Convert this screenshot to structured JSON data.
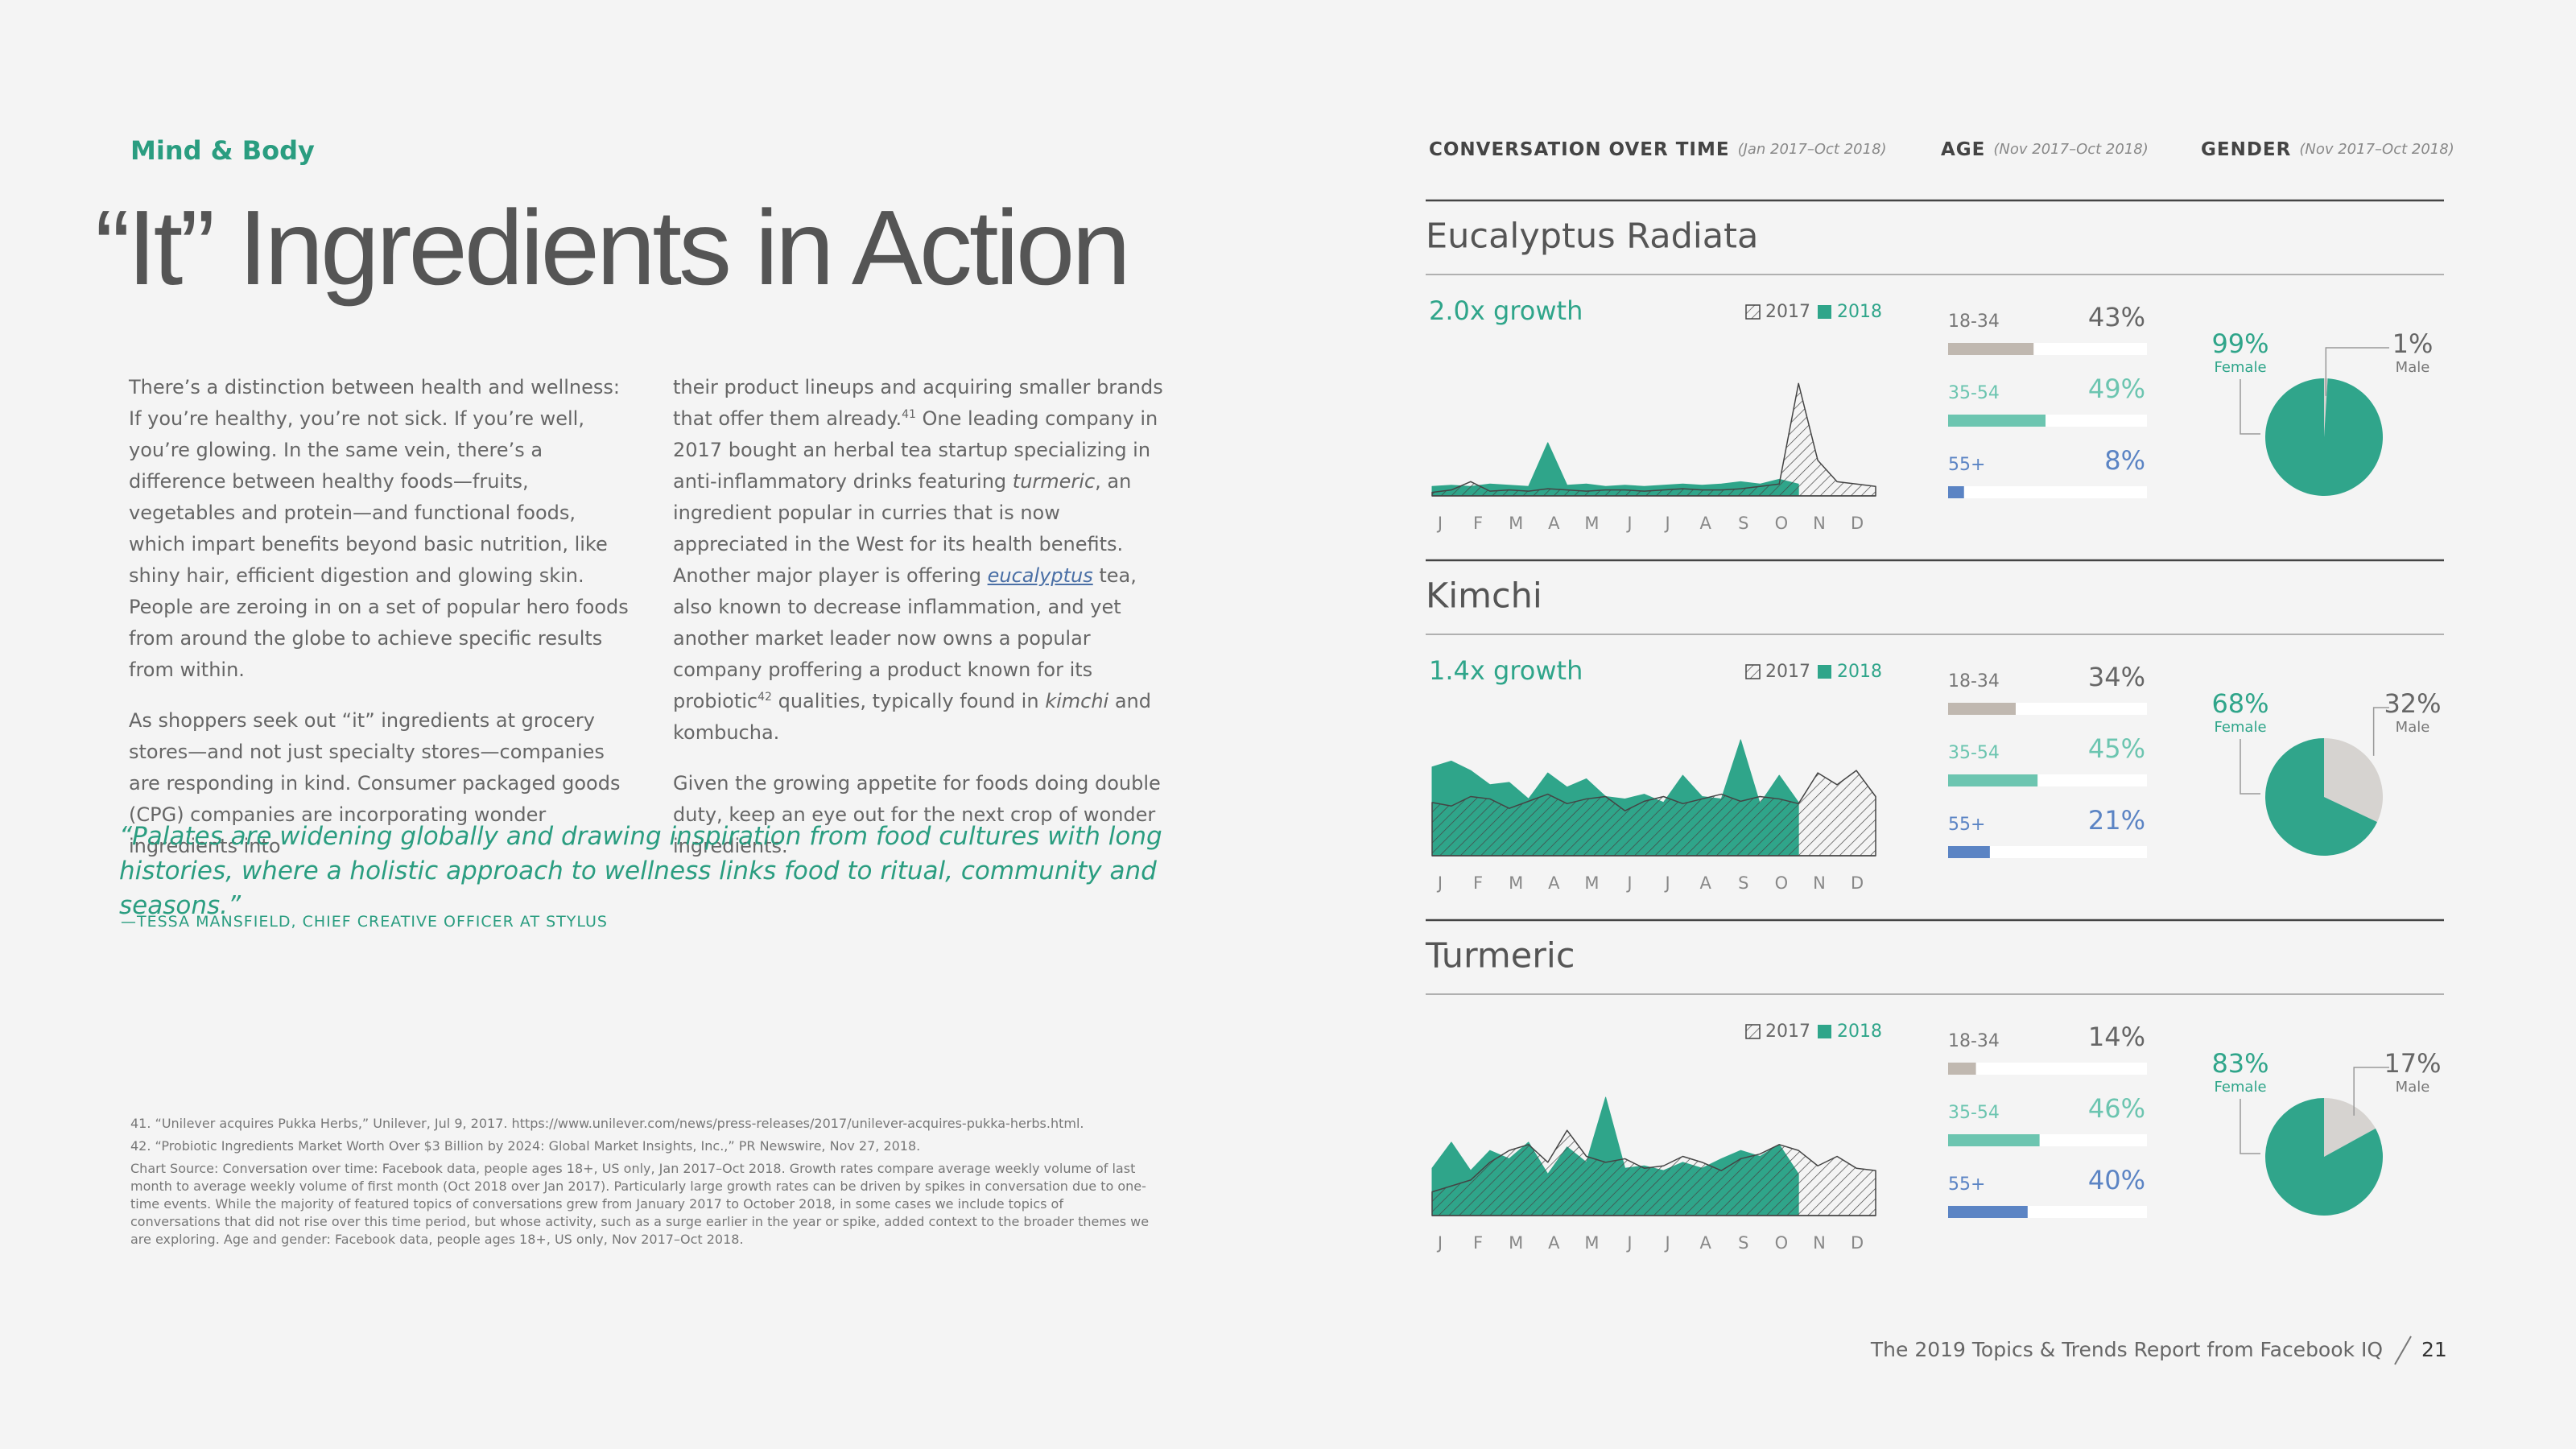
{
  "header": {
    "section": "Mind & Body",
    "title": "“It” Ingredients in Action"
  },
  "body": {
    "col1": [
      [
        "There’s a distinction between health and wellness: If you’re healthy, you’re not sick. If you’re well, you’re glowing. In the same vein, there’s a difference between healthy foods—fruits, vegetables and protein—and functional foods, which impart benefits beyond basic nutrition, like shiny hair, efficient digestion and glowing skin. People are zeroing in on a set of popular hero foods from around the globe to achieve specific results from within."
      ],
      [
        "As shoppers seek out “it” ingredients at grocery stores—and not just specialty stores—companies are responding in kind. Consumer packaged goods (CPG) companies are incorporating wonder ingredients into"
      ]
    ],
    "col2": [
      [
        "their product lineups and acquiring smaller brands that offer them already.",
        {
          "sup": "41"
        },
        " One leading company in 2017 bought an herbal tea startup specializing in anti-inflammatory drinks featuring ",
        {
          "em": "turmeric"
        },
        ", an ingredient popular in curries that is now appreciated in the West for its health benefits. Another major player is offering ",
        {
          "link": "eucalyptus"
        },
        " tea, also known to decrease inflammation, and yet another market leader now owns a popular company proffering a product known for its probiotic",
        {
          "sup": "42"
        },
        " qualities, typically found in ",
        {
          "em": "kimchi"
        },
        " and kombucha."
      ],
      [
        "Given the growing appetite for foods doing double duty, keep an eye out for the next crop of wonder ingredients."
      ]
    ]
  },
  "quote": {
    "text": "“Palates are widening globally and drawing inspiration from food cultures with long histories, where a holistic approach to wellness links food to ritual, community and seasons.”",
    "attribution": "—TESSA MANSFIELD, CHIEF CREATIVE OFFICER AT STYLUS"
  },
  "footnotes": [
    "41. “Unilever acquires Pukka Herbs,” Unilever, Jul 9, 2017. https://www.unilever.com/news/press-releases/2017/unilever-acquires-pukka-herbs.html.",
    "42. “Probiotic Ingredients Market Worth Over $3 Billion by 2024: Global Market Insights, Inc.,” PR Newswire, Nov 27, 2018.",
    "Chart Source: Conversation over time: Facebook data, people ages 18+, US only, Jan 2017–Oct 2018. Growth rates compare average weekly volume of last month to average weekly volume of first month (Oct 2018 over Jan 2017). Particularly large growth rates can be driven by spikes in conversation due to one-time events. While the majority of featured topics of conversations grew from January 2017 to October 2018, in some cases we include topics of conversations that did not rise over this time period, but whose activity, such as a surge earlier in the year or spike, added context to the broader themes we are exploring. Age and gender: Facebook data, people ages 18+, US only, Nov 2017–Oct 2018."
  ],
  "columns": [
    {
      "label": "CONVERSATION OVER TIME",
      "range": "(Jan 2017–Oct 2018)"
    },
    {
      "label": "AGE",
      "range": "(Nov 2017–Oct 2018)"
    },
    {
      "label": "GENDER",
      "range": "(Nov 2017–Oct 2018)"
    }
  ],
  "panels": [
    {
      "name": "Eucalyptus Radiata",
      "growth": "2.0x growth",
      "chart": {
        "type": "area",
        "ylim": [
          0,
          100
        ],
        "x_labels": [
          "J",
          "F",
          "M",
          "A",
          "M",
          "J",
          "J",
          "A",
          "S",
          "O",
          "N",
          "D"
        ],
        "series": [
          {
            "name": "2017",
            "color": "#444444",
            "values": [
              3,
              5,
              12,
              4,
              5,
              4,
              6,
              5,
              4,
              5,
              5,
              4,
              5,
              6,
              5,
              5,
              6,
              8,
              10,
              95,
              30,
              12,
              10,
              8
            ]
          },
          {
            "name": "2018",
            "color": "#2fa58a",
            "values": [
              8,
              9,
              8,
              10,
              9,
              8,
              45,
              9,
              10,
              8,
              9,
              8,
              9,
              10,
              9,
              10,
              12,
              10,
              14,
              10,
              null,
              null,
              null,
              null
            ]
          }
        ]
      },
      "age": {
        "type": "bar",
        "xlim": [
          0,
          100
        ],
        "categories": [
          "18-34",
          "35-54",
          "55+"
        ],
        "values": [
          43,
          49,
          8
        ],
        "value_labels": [
          "43%",
          "49%",
          "8%"
        ],
        "colors": [
          "#c0b8b0",
          "#6cc5b0",
          "#5b84c4"
        ]
      },
      "gender": {
        "type": "pie",
        "categories": [
          "Female",
          "Male"
        ],
        "values": [
          99,
          1
        ],
        "value_labels": [
          "99%",
          "1%"
        ],
        "colors": [
          "#30a58b",
          "#d6d3d0"
        ]
      }
    },
    {
      "name": "Kimchi",
      "growth": "1.4x growth",
      "chart": {
        "type": "area",
        "ylim": [
          0,
          100
        ],
        "x_labels": [
          "J",
          "F",
          "M",
          "A",
          "M",
          "J",
          "J",
          "A",
          "S",
          "O",
          "N",
          "D"
        ],
        "series": [
          {
            "name": "2017",
            "color": "#444444",
            "values": [
              45,
              42,
              50,
              48,
              40,
              46,
              52,
              44,
              48,
              50,
              38,
              46,
              50,
              44,
              48,
              52,
              46,
              50,
              48,
              44,
              70,
              60,
              72,
              50
            ]
          },
          {
            "name": "2018",
            "color": "#2fa58a",
            "values": [
              75,
              80,
              72,
              60,
              62,
              48,
              70,
              58,
              65,
              50,
              48,
              52,
              45,
              68,
              50,
              48,
              98,
              44,
              68,
              45,
              null,
              null,
              null,
              null
            ]
          }
        ]
      },
      "age": {
        "type": "bar",
        "xlim": [
          0,
          100
        ],
        "categories": [
          "18-34",
          "35-54",
          "55+"
        ],
        "values": [
          34,
          45,
          21
        ],
        "value_labels": [
          "34%",
          "45%",
          "21%"
        ],
        "colors": [
          "#c0b8b0",
          "#6cc5b0",
          "#5b84c4"
        ]
      },
      "gender": {
        "type": "pie",
        "categories": [
          "Female",
          "Male"
        ],
        "values": [
          68,
          32
        ],
        "value_labels": [
          "68%",
          "32%"
        ],
        "colors": [
          "#30a58b",
          "#d6d3d0"
        ]
      }
    },
    {
      "name": "Turmeric",
      "chart": {
        "type": "area",
        "ylim": [
          0,
          100
        ],
        "x_labels": [
          "J",
          "F",
          "M",
          "A",
          "M",
          "J",
          "J",
          "A",
          "S",
          "O",
          "N",
          "D"
        ],
        "series": [
          {
            "name": "2017",
            "color": "#444444",
            "values": [
              20,
              25,
              30,
              45,
              55,
              60,
              45,
              72,
              50,
              45,
              48,
              40,
              42,
              50,
              45,
              38,
              48,
              52,
              60,
              55,
              42,
              50,
              40,
              38
            ]
          },
          {
            "name": "2018",
            "color": "#2fa58a",
            "values": [
              40,
              62,
              38,
              55,
              48,
              62,
              35,
              58,
              45,
              100,
              40,
              42,
              38,
              45,
              40,
              48,
              55,
              50,
              60,
              35,
              null,
              null,
              null,
              null
            ]
          }
        ]
      },
      "age": {
        "type": "bar",
        "xlim": [
          0,
          100
        ],
        "categories": [
          "18-34",
          "35-54",
          "55+"
        ],
        "values": [
          14,
          46,
          40
        ],
        "value_labels": [
          "14%",
          "46%",
          "40%"
        ],
        "colors": [
          "#c0b8b0",
          "#6cc5b0",
          "#5b84c4"
        ]
      },
      "gender": {
        "type": "pie",
        "categories": [
          "Female",
          "Male"
        ],
        "values": [
          83,
          17
        ],
        "value_labels": [
          "83%",
          "17%"
        ],
        "colors": [
          "#30a58b",
          "#d6d3d0"
        ]
      }
    }
  ],
  "footer": {
    "report": "The 2019 Topics & Trends Report from Facebook IQ",
    "page": "21"
  }
}
